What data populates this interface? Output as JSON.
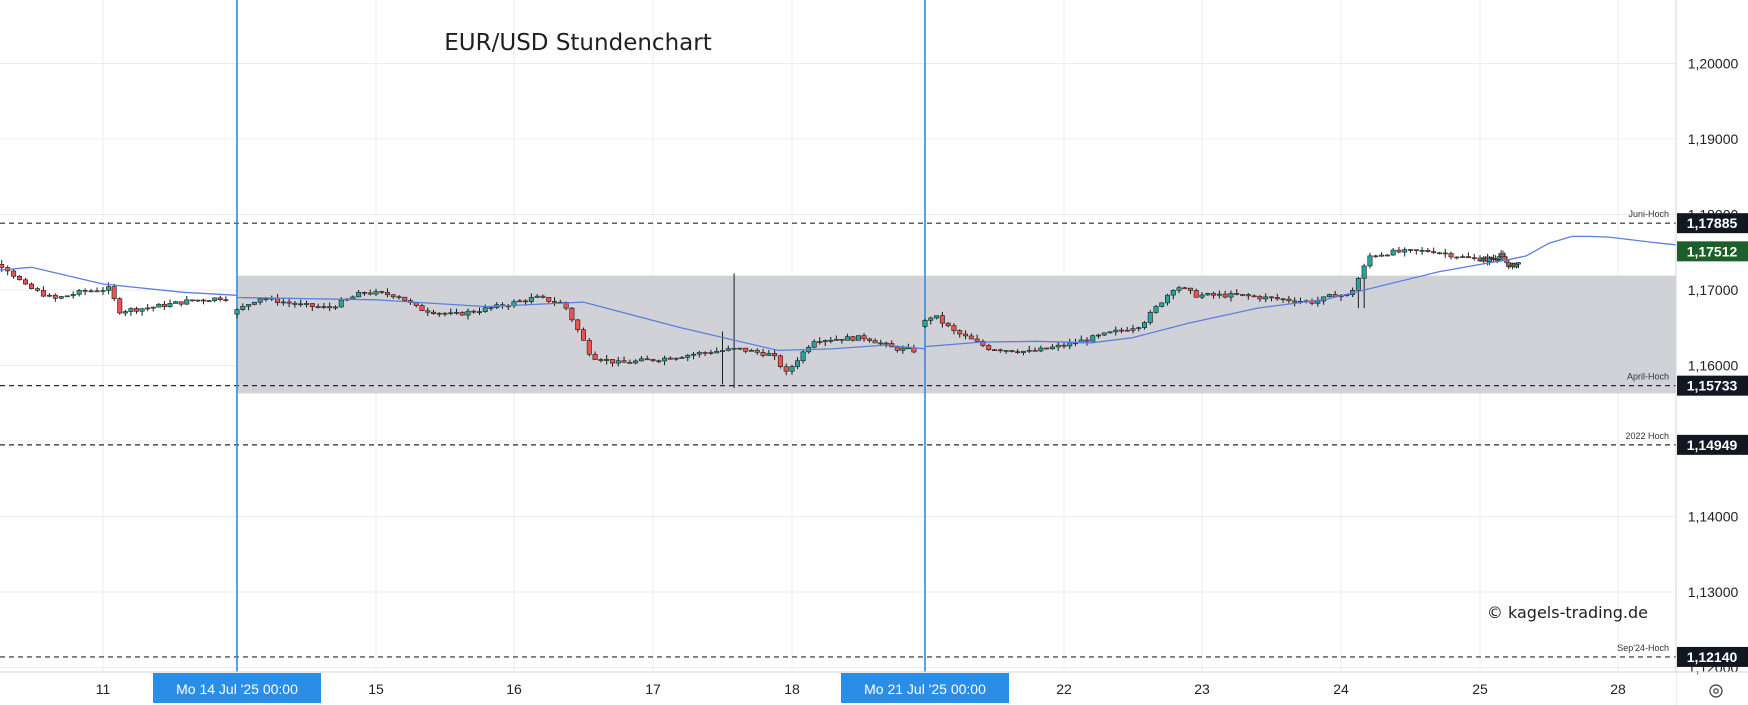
{
  "title": "EUR/USD Stundenchart",
  "watermark": "© kagels-trading.de",
  "settings_icon": "gear-icon",
  "colors": {
    "up": "#26a69a",
    "down": "#ef5350",
    "ma": "#5b7fde",
    "zone": "#cfd0d6",
    "current_price_bg": "#1d5f2a",
    "level_bg": "#131722",
    "vline": "#2b8ee6",
    "grid": "#ececec"
  },
  "chart_data": {
    "type": "candlestick",
    "title": "EUR/USD Stundenchart",
    "ylim": [
      1.115,
      1.21
    ],
    "y_ticks": [
      "1,20000",
      "1,19000",
      "1,18000",
      "1,17000",
      "1,16000",
      "1,14000",
      "1,13000",
      "1,12000"
    ],
    "y_tick_values": [
      1.2,
      1.19,
      1.18,
      1.17,
      1.16,
      1.14,
      1.13,
      1.12
    ],
    "x_ticks": [
      {
        "label": "11",
        "day": 11
      },
      {
        "label": "15",
        "day": 15
      },
      {
        "label": "16",
        "day": 16
      },
      {
        "label": "17",
        "day": 17
      },
      {
        "label": "18",
        "day": 18
      },
      {
        "label": "22",
        "day": 22
      },
      {
        "label": "23",
        "day": 23
      },
      {
        "label": "24",
        "day": 24
      },
      {
        "label": "25",
        "day": 25
      },
      {
        "label": "28",
        "day": 28
      }
    ],
    "highlighted_dates": [
      {
        "label": "Mo 14 Jul '25   00:00",
        "day": 14
      },
      {
        "label": "Mo 21 Jul '25   00:00",
        "day": 21
      }
    ],
    "levels": [
      {
        "name": "Juni-Hoch",
        "value": 1.17885,
        "label": "1,17885"
      },
      {
        "name": "April-Hoch",
        "value": 1.15733,
        "label": "1,15733"
      },
      {
        "name": "2022 Hoch",
        "value": 1.14949,
        "label": "1,14949"
      },
      {
        "name": "Sep'24-Hoch",
        "value": 1.1214,
        "label": "1,12140"
      }
    ],
    "current_price": {
      "value": 1.17512,
      "label": "1,17512"
    },
    "zone": {
      "from": 1.1563,
      "to": 1.1719
    },
    "close_path": [
      [
        10.0,
        1.1742
      ],
      [
        10.35,
        1.1732
      ],
      [
        10.5,
        1.1705
      ],
      [
        10.7,
        1.1688
      ],
      [
        10.9,
        1.1698
      ],
      [
        11.1,
        1.1702
      ],
      [
        11.15,
        1.1672
      ],
      [
        11.4,
        1.1677
      ],
      [
        11.7,
        1.1686
      ],
      [
        11.95,
        1.169
      ],
      [
        12.3,
        1.1691
      ],
      [
        12.6,
        1.1686
      ],
      [
        14.0,
        1.1668
      ],
      [
        14.2,
        1.169
      ],
      [
        14.5,
        1.168
      ],
      [
        14.7,
        1.1676
      ],
      [
        14.95,
        1.1697
      ],
      [
        15.2,
        1.1693
      ],
      [
        15.35,
        1.1675
      ],
      [
        15.6,
        1.1667
      ],
      [
        15.9,
        1.1677
      ],
      [
        16.2,
        1.169
      ],
      [
        16.4,
        1.1682
      ],
      [
        16.6,
        1.1612
      ],
      [
        16.8,
        1.1603
      ],
      [
        17.1,
        1.1609
      ],
      [
        17.4,
        1.1617
      ],
      [
        17.65,
        1.1622
      ],
      [
        17.9,
        1.1614
      ],
      [
        18.0,
        1.159
      ],
      [
        18.1,
        1.1612
      ],
      [
        18.2,
        1.1634
      ],
      [
        18.6,
        1.1637
      ],
      [
        18.8,
        1.1623
      ],
      [
        19.0,
        1.1619
      ],
      [
        19.1,
        1.1588
      ],
      [
        19.3,
        1.1583
      ],
      [
        19.6,
        1.1592
      ],
      [
        19.85,
        1.1594
      ],
      [
        20.05,
        1.1608
      ],
      [
        20.3,
        1.1627
      ],
      [
        20.6,
        1.1622
      ],
      [
        20.95,
        1.1644
      ],
      [
        21.1,
        1.1667
      ],
      [
        21.25,
        1.1645
      ],
      [
        21.5,
        1.1623
      ],
      [
        21.8,
        1.1618
      ],
      [
        22.05,
        1.1627
      ],
      [
        22.3,
        1.1639
      ],
      [
        22.6,
        1.1654
      ],
      [
        22.85,
        1.1706
      ],
      [
        23.0,
        1.1693
      ],
      [
        23.3,
        1.1693
      ],
      [
        23.6,
        1.1688
      ],
      [
        23.85,
        1.1684
      ],
      [
        24.0,
        1.1694
      ],
      [
        24.1,
        1.1692
      ],
      [
        24.25,
        1.1745
      ],
      [
        24.4,
        1.175
      ],
      [
        24.7,
        1.1752
      ],
      [
        24.95,
        1.1742
      ],
      [
        25.2,
        1.174
      ],
      [
        25.5,
        1.1745
      ],
      [
        25.7,
        1.1731
      ],
      [
        25.95,
        1.1737
      ],
      [
        26.05,
        1.1754
      ],
      [
        26.3,
        1.1775
      ],
      [
        26.6,
        1.1776
      ],
      [
        26.9,
        1.1775
      ],
      [
        27.15,
        1.177
      ],
      [
        27.35,
        1.1755
      ],
      [
        27.5,
        1.1743
      ],
      [
        27.7,
        1.1772
      ],
      [
        27.95,
        1.1768
      ],
      [
        28.15,
        1.1757
      ],
      [
        28.35,
        1.175
      ],
      [
        28.55,
        1.1743
      ],
      [
        28.8,
        1.1752
      ]
    ],
    "moving_average": [
      [
        10.0,
        1.1722
      ],
      [
        10.5,
        1.173
      ],
      [
        11.0,
        1.1708
      ],
      [
        11.6,
        1.1697
      ],
      [
        12.4,
        1.1693
      ],
      [
        14.0,
        1.169
      ],
      [
        15.0,
        1.1687
      ],
      [
        15.8,
        1.1678
      ],
      [
        16.5,
        1.1684
      ],
      [
        17.2,
        1.165
      ],
      [
        17.9,
        1.162
      ],
      [
        18.3,
        1.1622
      ],
      [
        18.7,
        1.1627
      ],
      [
        19.3,
        1.1622
      ],
      [
        19.7,
        1.1608
      ],
      [
        20.1,
        1.1598
      ],
      [
        20.6,
        1.161
      ],
      [
        21.0,
        1.1625
      ],
      [
        21.4,
        1.1631
      ],
      [
        21.8,
        1.1632
      ],
      [
        22.2,
        1.163
      ],
      [
        22.5,
        1.1637
      ],
      [
        22.9,
        1.1656
      ],
      [
        23.4,
        1.1676
      ],
      [
        23.9,
        1.1688
      ],
      [
        24.3,
        1.1706
      ],
      [
        24.7,
        1.1724
      ],
      [
        25.1,
        1.1735
      ],
      [
        25.6,
        1.174
      ],
      [
        26.0,
        1.1745
      ],
      [
        26.5,
        1.1762
      ],
      [
        27.0,
        1.1771
      ],
      [
        27.4,
        1.1771
      ],
      [
        27.8,
        1.177
      ],
      [
        28.3,
        1.1762
      ],
      [
        28.8,
        1.1753
      ]
    ],
    "spikes": [
      {
        "day": 17.6,
        "high": 1.1722,
        "low": 1.157
      },
      {
        "day": 17.5,
        "high": 1.1645,
        "low": 1.1575
      },
      {
        "day": 19.3,
        "high": 1.162,
        "low": 1.156
      },
      {
        "day": 19.1,
        "high": 1.1628,
        "low": 1.1572
      },
      {
        "day": 12.4,
        "high": 1.1712,
        "low": 1.168
      },
      {
        "day": 24.15,
        "high": 1.1702,
        "low": 1.1676
      },
      {
        "day": 26.0,
        "high": 1.1752,
        "low": 1.1712
      },
      {
        "day": 27.55,
        "high": 1.179,
        "low": 1.1728
      }
    ]
  }
}
